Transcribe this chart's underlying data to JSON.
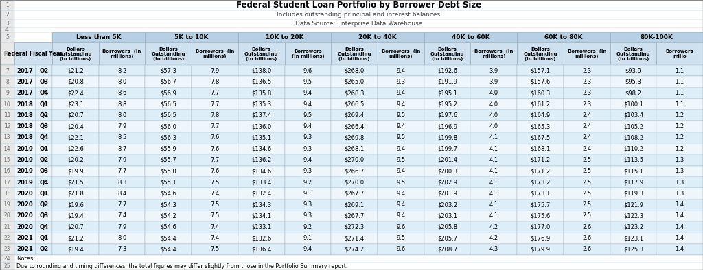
{
  "title": "Federal Student Loan Portfolio by Borrower Debt Size",
  "subtitle": "Includes outstanding principal and interest balances",
  "source": "Data Source: Enterprise Data Warehouse",
  "note1": "Notes:",
  "note2": "Due to rounding and timing differences, the total figures may differ slightly from those in the Portfolio Summary report.",
  "col_groups": [
    {
      "label": "Less than 5K"
    },
    {
      "label": "5K to 10K"
    },
    {
      "label": "10K to 20K"
    },
    {
      "label": "20K to 40K"
    },
    {
      "label": "40K to 60K"
    },
    {
      "label": "60K to 80K"
    },
    {
      "label": "80K-100K"
    }
  ],
  "rows": [
    [
      "2017",
      "Q2",
      "$21.2",
      "8.2",
      "$57.3",
      "7.9",
      "$138.0",
      "9.6",
      "$268.0",
      "9.4",
      "$192.6",
      "3.9",
      "$157.1",
      "2.3",
      "$93.9",
      "1.1"
    ],
    [
      "2017",
      "Q3",
      "$20.8",
      "8.0",
      "$56.7",
      "7.8",
      "$136.5",
      "9.5",
      "$265.0",
      "9.3",
      "$191.9",
      "3.9",
      "$157.6",
      "2.3",
      "$95.3",
      "1.1"
    ],
    [
      "2017",
      "Q4",
      "$22.4",
      "8.6",
      "$56.9",
      "7.7",
      "$135.8",
      "9.4",
      "$268.3",
      "9.4",
      "$195.1",
      "4.0",
      "$160.3",
      "2.3",
      "$98.2",
      "1.1"
    ],
    [
      "2018",
      "Q1",
      "$23.1",
      "8.8",
      "$56.5",
      "7.7",
      "$135.3",
      "9.4",
      "$266.5",
      "9.4",
      "$195.2",
      "4.0",
      "$161.2",
      "2.3",
      "$100.1",
      "1.1"
    ],
    [
      "2018",
      "Q2",
      "$20.7",
      "8.0",
      "$56.5",
      "7.8",
      "$137.4",
      "9.5",
      "$269.4",
      "9.5",
      "$197.6",
      "4.0",
      "$164.9",
      "2.4",
      "$103.4",
      "1.2"
    ],
    [
      "2018",
      "Q3",
      "$20.4",
      "7.9",
      "$56.0",
      "7.7",
      "$136.0",
      "9.4",
      "$266.4",
      "9.4",
      "$196.9",
      "4.0",
      "$165.3",
      "2.4",
      "$105.2",
      "1.2"
    ],
    [
      "2018",
      "Q4",
      "$22.1",
      "8.5",
      "$56.3",
      "7.6",
      "$135.1",
      "9.3",
      "$269.8",
      "9.5",
      "$199.8",
      "4.1",
      "$167.5",
      "2.4",
      "$108.2",
      "1.2"
    ],
    [
      "2019",
      "Q1",
      "$22.6",
      "8.7",
      "$55.9",
      "7.6",
      "$134.6",
      "9.3",
      "$268.1",
      "9.4",
      "$199.7",
      "4.1",
      "$168.1",
      "2.4",
      "$110.2",
      "1.2"
    ],
    [
      "2019",
      "Q2",
      "$20.2",
      "7.9",
      "$55.7",
      "7.7",
      "$136.2",
      "9.4",
      "$270.0",
      "9.5",
      "$201.4",
      "4.1",
      "$171.2",
      "2.5",
      "$113.5",
      "1.3"
    ],
    [
      "2019",
      "Q3",
      "$19.9",
      "7.7",
      "$55.0",
      "7.6",
      "$134.6",
      "9.3",
      "$266.7",
      "9.4",
      "$200.3",
      "4.1",
      "$171.2",
      "2.5",
      "$115.1",
      "1.3"
    ],
    [
      "2019",
      "Q4",
      "$21.5",
      "8.3",
      "$55.1",
      "7.5",
      "$133.4",
      "9.2",
      "$270.0",
      "9.5",
      "$202.9",
      "4.1",
      "$173.2",
      "2.5",
      "$117.9",
      "1.3"
    ],
    [
      "2020",
      "Q1",
      "$21.8",
      "8.4",
      "$54.6",
      "7.4",
      "$132.4",
      "9.1",
      "$267.7",
      "9.4",
      "$201.9",
      "4.1",
      "$173.1",
      "2.5",
      "$119.3",
      "1.3"
    ],
    [
      "2020",
      "Q2",
      "$19.6",
      "7.7",
      "$54.3",
      "7.5",
      "$134.3",
      "9.3",
      "$269.1",
      "9.4",
      "$203.2",
      "4.1",
      "$175.7",
      "2.5",
      "$121.9",
      "1.4"
    ],
    [
      "2020",
      "Q3",
      "$19.4",
      "7.4",
      "$54.2",
      "7.5",
      "$134.1",
      "9.3",
      "$267.7",
      "9.4",
      "$203.1",
      "4.1",
      "$175.6",
      "2.5",
      "$122.3",
      "1.4"
    ],
    [
      "2020",
      "Q4",
      "$20.7",
      "7.9",
      "$54.6",
      "7.4",
      "$133.1",
      "9.2",
      "$272.3",
      "9.6",
      "$205.8",
      "4.2",
      "$177.0",
      "2.6",
      "$123.2",
      "1.4"
    ],
    [
      "2021",
      "Q1",
      "$21.2",
      "8.0",
      "$54.4",
      "7.4",
      "$132.6",
      "9.1",
      "$271.4",
      "9.5",
      "$205.7",
      "4.2",
      "$176.9",
      "2.6",
      "$123.1",
      "1.4"
    ],
    [
      "2021",
      "Q2",
      "$19.4",
      "7.3",
      "$54.4",
      "7.5",
      "$136.4",
      "9.4",
      "$274.2",
      "9.6",
      "$208.7",
      "4.3",
      "$179.9",
      "2.6",
      "$125.3",
      "1.4"
    ]
  ],
  "header_bg": "#cfe0ee",
  "group_header_bg": "#b8d0e4",
  "row_bg_even": "#ddeef9",
  "row_bg_odd": "#eef6fc",
  "border_color": "#9ab0c0",
  "row_number_bg": "#e8e8e8",
  "row_numbers": [
    1,
    2,
    3,
    4,
    5,
    6,
    7,
    8,
    9,
    10,
    11,
    12,
    13,
    14,
    15,
    16,
    17,
    18,
    19,
    20,
    21,
    22,
    23,
    24,
    25
  ],
  "data_row_numbers": [
    7,
    8,
    9,
    10,
    11,
    12,
    13,
    14,
    15,
    16,
    17,
    18,
    19,
    20,
    21,
    22,
    23
  ]
}
